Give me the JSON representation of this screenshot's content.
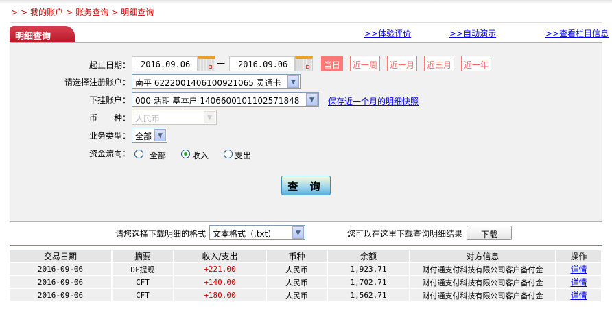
{
  "breadcrumb": {
    "prefix": ">",
    "items": [
      "我的账户",
      "账务查询",
      "明细查询"
    ]
  },
  "tab_title": "明细查询",
  "top_links": [
    ">>体验评价",
    ">>自动演示",
    ">>查看栏目信息"
  ],
  "form": {
    "date_label": "起止日期：",
    "start_date": "2016.09.06",
    "dash": "一",
    "end_date": "2016.09.06",
    "quick_ranges": [
      "当日",
      "近一周",
      "近一月",
      "近三月",
      "近一年"
    ],
    "quick_selected": "当日",
    "reg_account_label": "请选择注册账户：",
    "reg_account_value": "南平 6222001406100921065 灵通卡",
    "sub_account_label": "下挂账户：",
    "sub_account_value": "000 活期 基本户 1406600101102571848",
    "snapshot_link": "保存近一个月的明细快照",
    "currency_label": "币　　种：",
    "currency_value": "人民币",
    "biz_type_label": "业务类型：",
    "biz_type_value": "全部",
    "flow_label": "资金流向：",
    "flow_options": [
      "全部",
      "收入",
      "支出"
    ],
    "flow_selected": "收入",
    "query_button": "查 询"
  },
  "download": {
    "format_label": "请您选择下载明细的格式",
    "format_value": "文本格式（.txt）",
    "hint": "您可以在这里下载查询明细结果",
    "button": "下载"
  },
  "table": {
    "headers": [
      "交易日期",
      "摘要",
      "收入/支出",
      "币种",
      "余额",
      "对方信息",
      "操作"
    ],
    "rows": [
      [
        "2016-09-06",
        "DF提现",
        "+221.00",
        "人民币",
        "1,923.71",
        "财付通支付科技有限公司客户备付金",
        "详情"
      ],
      [
        "2016-09-06",
        "CFT",
        "+140.00",
        "人民币",
        "1,702.71",
        "财付通支付科技有限公司客户备付金",
        "详情"
      ],
      [
        "2016-09-06",
        "CFT",
        "+180.00",
        "人民币",
        "1,562.71",
        "财付通支付科技有限公司客户备付金",
        "详情"
      ]
    ]
  },
  "colors": {
    "brand_red": "#c81e2d",
    "quick_active": "#ff7777",
    "link": "#0000ff",
    "amount": "#cc0000"
  }
}
